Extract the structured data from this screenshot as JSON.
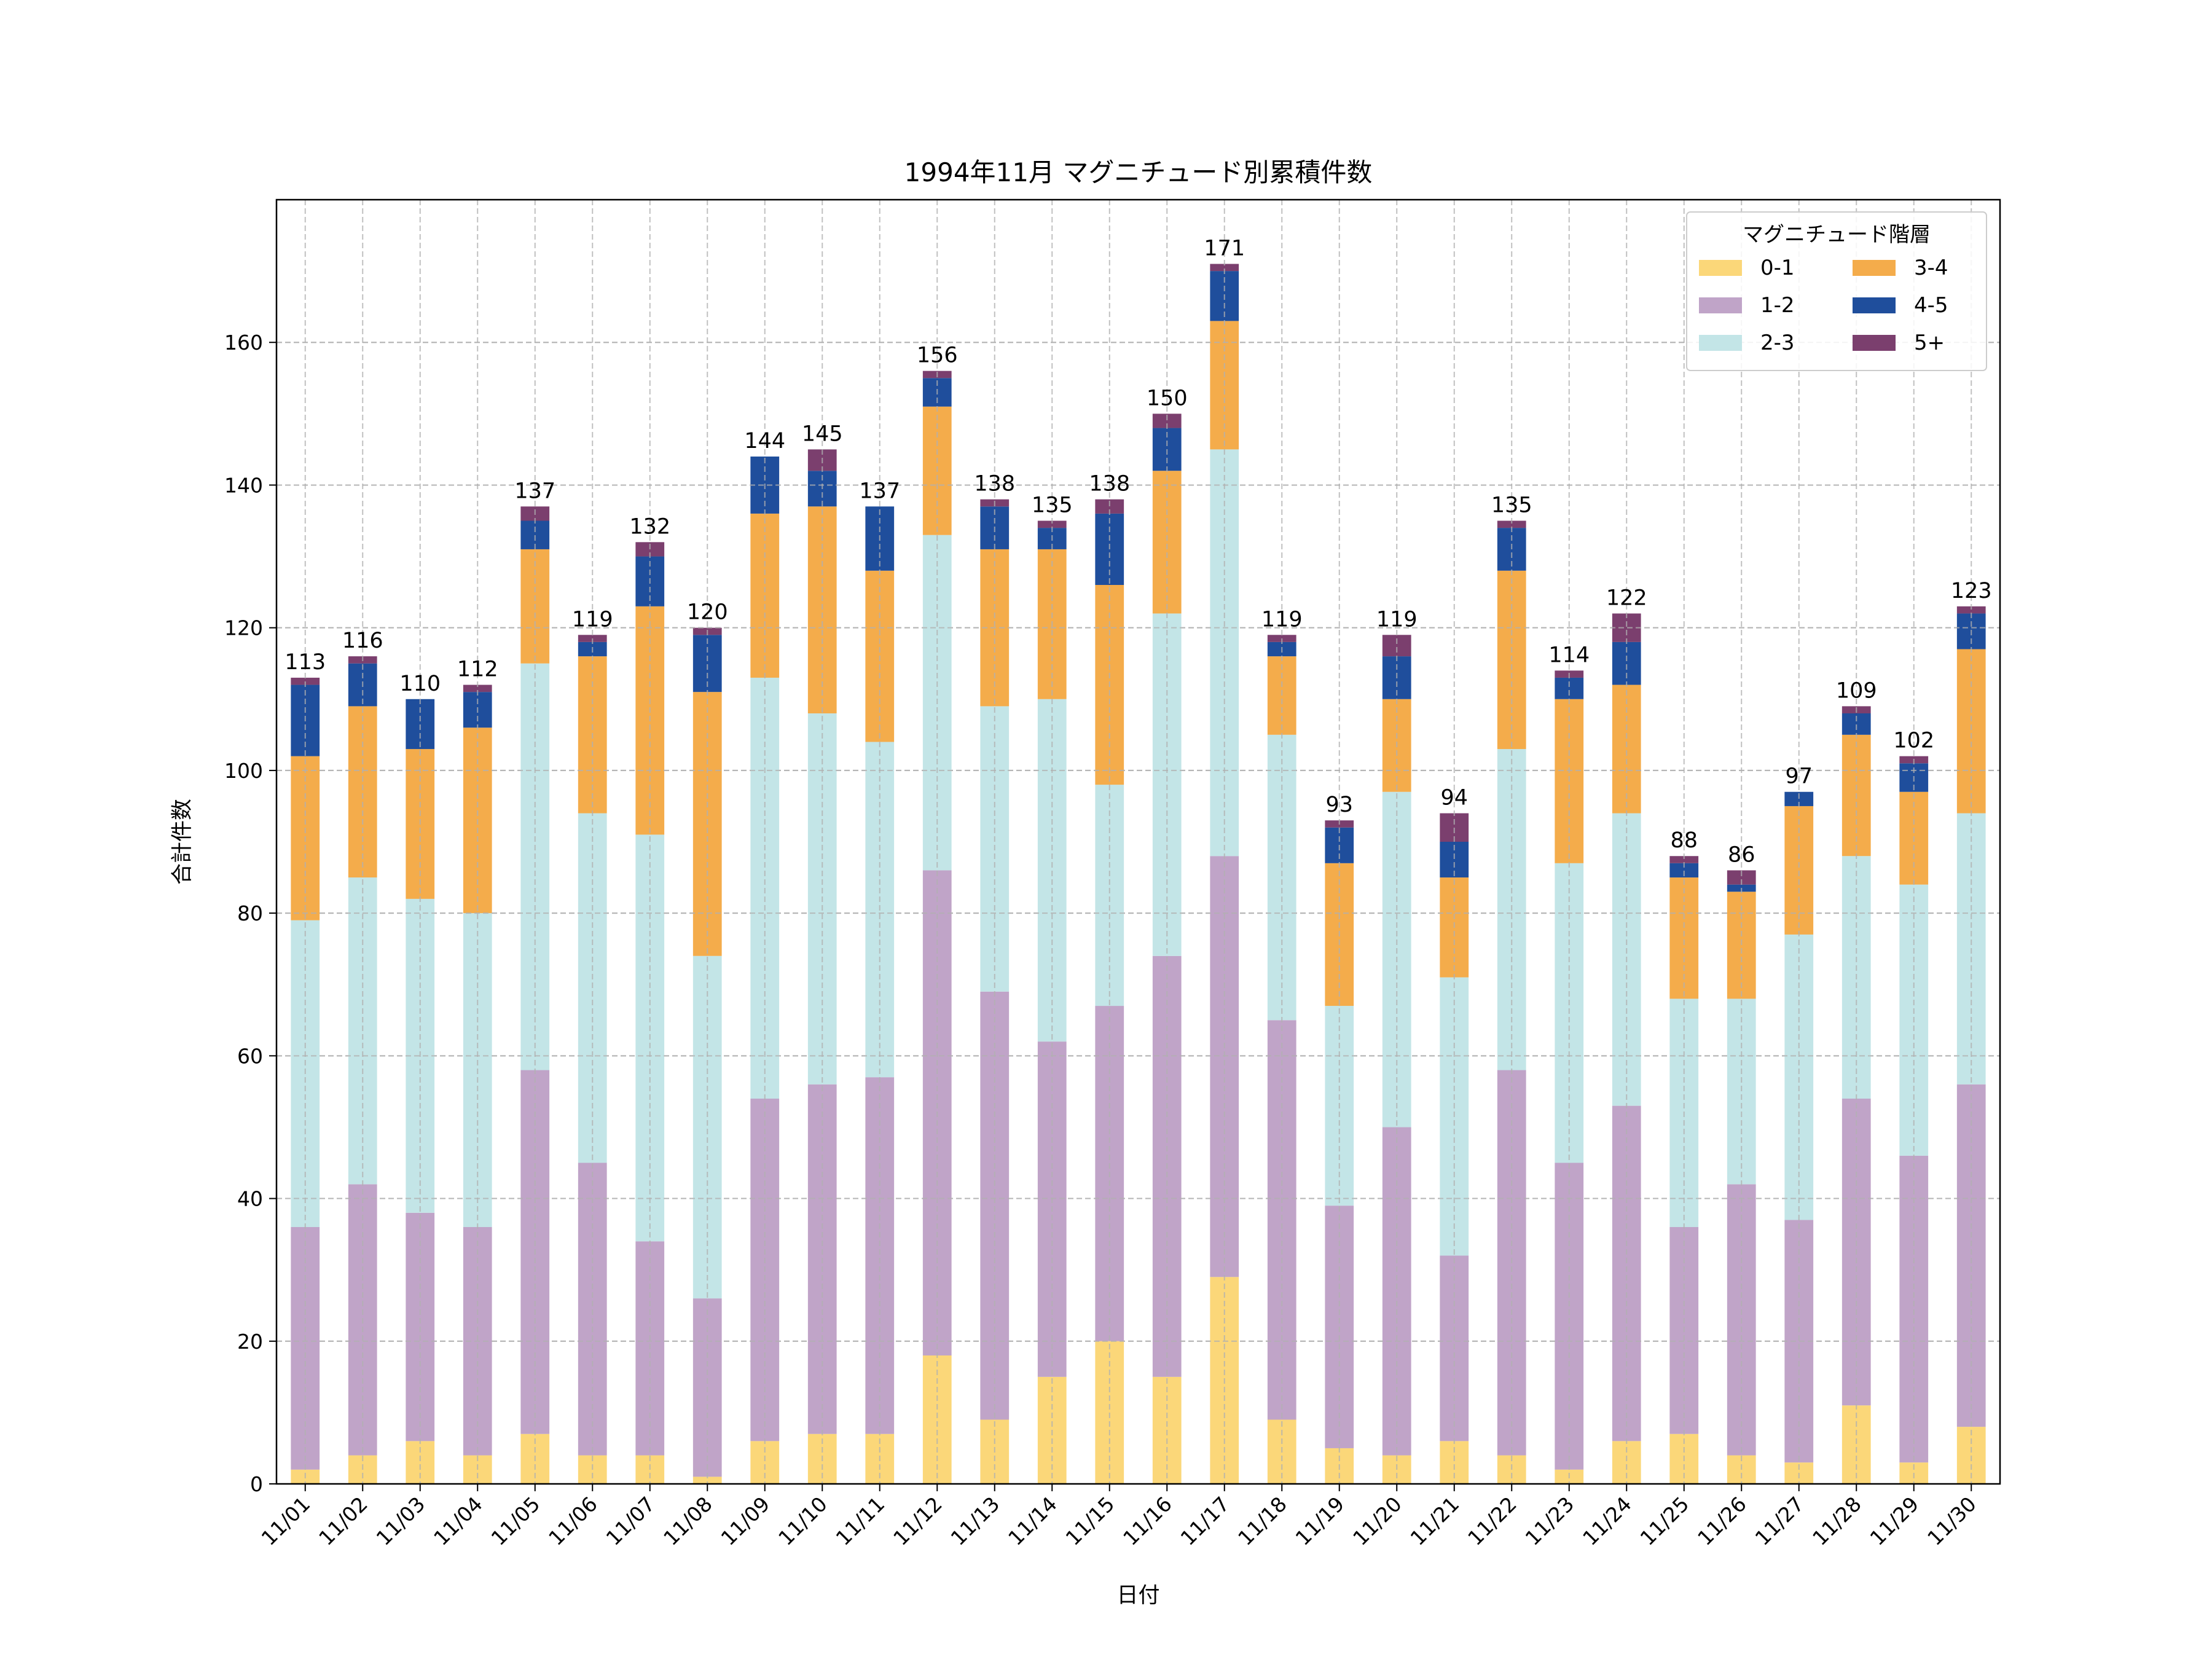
{
  "chart_data": {
    "type": "bar",
    "stacked": true,
    "title": "1994年11月 マグニチュード別累積件数",
    "xlabel": "日付",
    "ylabel": "合計件数",
    "ylim": [
      0,
      180
    ],
    "yticks": [
      0,
      20,
      40,
      60,
      80,
      100,
      120,
      140,
      160
    ],
    "grid": true,
    "legend_title": "マグニチュード階層",
    "legend_position": "top-right",
    "categories": [
      "11/01",
      "11/02",
      "11/03",
      "11/04",
      "11/05",
      "11/06",
      "11/07",
      "11/08",
      "11/09",
      "11/10",
      "11/11",
      "11/12",
      "11/13",
      "11/14",
      "11/15",
      "11/16",
      "11/17",
      "11/18",
      "11/19",
      "11/20",
      "11/21",
      "11/22",
      "11/23",
      "11/24",
      "11/25",
      "11/26",
      "11/27",
      "11/28",
      "11/29",
      "11/30"
    ],
    "series": [
      {
        "name": "0-1",
        "color": "#fbd779",
        "values": [
          2,
          4,
          6,
          4,
          7,
          4,
          4,
          1,
          6,
          7,
          7,
          18,
          9,
          15,
          20,
          15,
          29,
          9,
          5,
          4,
          6,
          4,
          2,
          6,
          7,
          4,
          3,
          11,
          3,
          8
        ]
      },
      {
        "name": "1-2",
        "color": "#c0a4c8",
        "values": [
          34,
          38,
          32,
          32,
          51,
          41,
          30,
          25,
          48,
          49,
          50,
          68,
          60,
          47,
          47,
          59,
          59,
          56,
          34,
          46,
          26,
          54,
          43,
          47,
          29,
          38,
          34,
          43,
          43,
          48
        ]
      },
      {
        "name": "2-3",
        "color": "#c3e5e7",
        "values": [
          43,
          43,
          44,
          44,
          57,
          49,
          57,
          48,
          59,
          52,
          47,
          47,
          40,
          48,
          31,
          48,
          57,
          40,
          28,
          47,
          39,
          45,
          42,
          41,
          32,
          26,
          40,
          34,
          38,
          38
        ]
      },
      {
        "name": "3-4",
        "color": "#f4ac4b",
        "values": [
          23,
          24,
          21,
          26,
          16,
          22,
          32,
          37,
          23,
          29,
          24,
          18,
          22,
          21,
          28,
          20,
          18,
          11,
          20,
          13,
          14,
          25,
          23,
          18,
          17,
          15,
          18,
          17,
          13,
          23
        ]
      },
      {
        "name": "4-5",
        "color": "#1f4e9c",
        "values": [
          10,
          6,
          7,
          5,
          4,
          2,
          7,
          8,
          8,
          5,
          9,
          4,
          6,
          3,
          10,
          6,
          7,
          2,
          5,
          6,
          5,
          6,
          3,
          6,
          2,
          1,
          2,
          3,
          4,
          5
        ]
      },
      {
        "name": "5+",
        "color": "#7b3f6e",
        "values": [
          1,
          1,
          0,
          1,
          2,
          1,
          2,
          1,
          0,
          3,
          0,
          1,
          1,
          1,
          2,
          2,
          1,
          1,
          1,
          3,
          4,
          1,
          1,
          4,
          1,
          2,
          0,
          1,
          1,
          1
        ]
      }
    ],
    "totals": [
      113,
      116,
      110,
      112,
      137,
      119,
      132,
      120,
      144,
      145,
      137,
      156,
      138,
      135,
      138,
      150,
      171,
      119,
      93,
      119,
      94,
      135,
      114,
      122,
      88,
      86,
      97,
      109,
      102,
      123
    ]
  }
}
